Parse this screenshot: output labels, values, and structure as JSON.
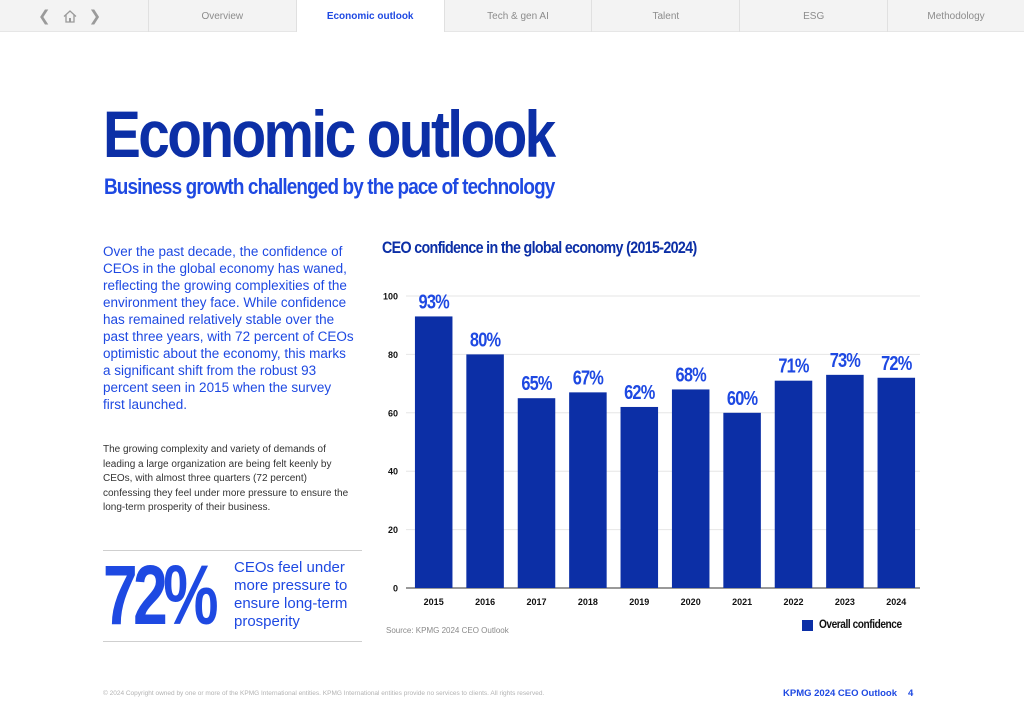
{
  "nav": {
    "back_icon": "chevron-left-icon",
    "home_icon": "home-icon",
    "forward_icon": "chevron-right-icon",
    "tabs": [
      {
        "label": "Overview"
      },
      {
        "label": "Economic outlook"
      },
      {
        "label": "Tech & gen AI"
      },
      {
        "label": "Talent"
      },
      {
        "label": "ESG"
      },
      {
        "label": "Methodology"
      }
    ],
    "active_tab": "Economic outlook"
  },
  "page": {
    "title": "Economic outlook",
    "subtitle": "Business growth challenged by the pace of technology"
  },
  "body": {
    "para1": "Over the past decade, the confidence of CEOs in the global economy has waned, reflecting the growing complexities of the environment they face. While confidence has remained relatively stable over the past three years, with 72 percent of CEOs optimistic about the economy, this marks a significant shift from the robust 93 percent seen in 2015 when the survey first launched.",
    "para2": "The growing complexity and variety of demands of leading a large organization are being felt keenly by CEOs, with almost three quarters (72 percent) confessing they feel under more pressure to ensure the long-term prosperity of their business."
  },
  "stat": {
    "value": "72%",
    "text": "CEOs feel under more pressure to ensure long-term prosperity"
  },
  "chart_data": {
    "type": "bar",
    "title": "CEO confidence in the global economy (2015-2024)",
    "categories": [
      "2015",
      "2016",
      "2017",
      "2018",
      "2019",
      "2020",
      "2021",
      "2022",
      "2023",
      "2024"
    ],
    "series": [
      {
        "name": "Overall confidence",
        "values": [
          93,
          80,
          65,
          67,
          62,
          68,
          60,
          71,
          73,
          72
        ]
      }
    ],
    "value_labels": [
      "93%",
      "80%",
      "65%",
      "67%",
      "62%",
      "68%",
      "60%",
      "71%",
      "73%",
      "72%"
    ],
    "ylim": [
      0,
      100
    ],
    "yticks": [
      0,
      20,
      40,
      60,
      80,
      100
    ],
    "grid": true,
    "legend": "bottom-right",
    "source": "Source: KPMG 2024 CEO Outlook"
  },
  "colors": {
    "bar": "#0c2fa6",
    "accent": "#1e49e2",
    "grid": "#e6e6e6"
  },
  "footer": {
    "copyright": "© 2024 Copyright owned by one or more of the KPMG International entities. KPMG International entities provide no services to clients. All rights reserved.",
    "brand": "KPMG 2024 CEO Outlook",
    "page_number": "4"
  }
}
